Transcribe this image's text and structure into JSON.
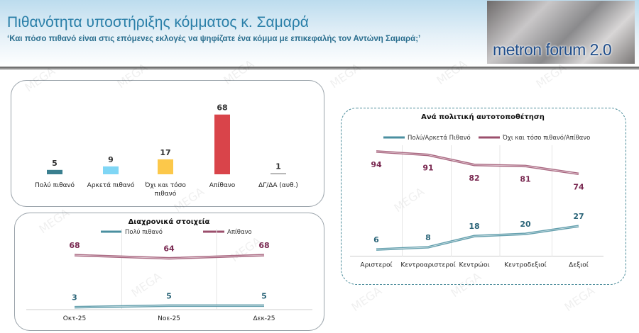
{
  "header": {
    "title": "Πιθανότητα υποστήριξης κόμματος κ. Σαμαρά",
    "subtitle": "‘Και πόσο πιθανό είναι στις επόμενες εκλογές να ψηφίζατε ένα κόμμα με επικεφαλής τον Αντώνη Σαμαρά;’",
    "logo_text": "metron forum 2.0"
  },
  "watermark": "MEGA",
  "chart_data": [
    {
      "type": "bar",
      "categories": [
        "Πολύ πιθανό",
        "Αρκετά πιθανό",
        "Όχι και τόσο πιθανό",
        "Απίθανο",
        "ΔΓ/ΔΑ (αυθ.)"
      ],
      "values": [
        5,
        9,
        17,
        68,
        1
      ],
      "colors": [
        "#3a7f8f",
        "#7fd6f5",
        "#fcc84a",
        "#d9444a",
        "#9a9a9a"
      ],
      "title": "",
      "xlabel": "",
      "ylabel": "",
      "ylim": [
        0,
        70
      ],
      "grid": false
    },
    {
      "type": "line",
      "title": "Διαχρονικά στοιχεία",
      "categories": [
        "Οκτ-25",
        "Νοε-25",
        "Δεκ-25"
      ],
      "series": [
        {
          "name": "Πολύ πιθανό",
          "values": [
            3,
            5,
            5
          ],
          "color": "#4a8fa0",
          "label_color": "#2a6478"
        },
        {
          "name": "Απίθανο",
          "values": [
            68,
            64,
            68
          ],
          "color": "#9b4f6c",
          "label_color": "#7a2a52"
        }
      ],
      "ylim": [
        0,
        70
      ],
      "legend": "top",
      "grid": "vertical"
    },
    {
      "type": "line",
      "title": "Ανά πολιτική αυτοτοποθέτηση",
      "categories": [
        "Αριστεροί",
        "Κεντροαριστεροί",
        "Κεντρώοι",
        "Κεντροδεξιοί",
        "Δεξιοί"
      ],
      "series": [
        {
          "name": "Πολύ/Αρκετά Πιθανό",
          "values": [
            6,
            8,
            18,
            20,
            27
          ],
          "color": "#4a8fa0",
          "label_color": "#2a6478"
        },
        {
          "name": "Όχι και τόσο πιθανό/Απίθανο",
          "values": [
            94,
            91,
            82,
            81,
            74
          ],
          "color": "#9b4f6c",
          "label_color": "#7a2a52"
        }
      ],
      "ylim": [
        0,
        100
      ],
      "legend": "top",
      "grid": "vertical"
    }
  ]
}
